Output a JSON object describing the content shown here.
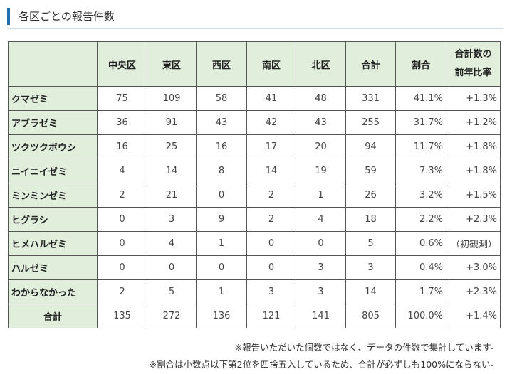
{
  "header": {
    "title": "各区ごとの報告件数"
  },
  "table": {
    "columns": [
      "中央区",
      "東区",
      "西区",
      "南区",
      "北区",
      "合計",
      "割合"
    ],
    "last_column": [
      "合計数の",
      "前年比率"
    ],
    "rows": [
      {
        "name": "クマゼミ",
        "values": [
          "75",
          "109",
          "58",
          "41",
          "48",
          "331"
        ],
        "ratio": "41.1%",
        "yoy": "+1.3%"
      },
      {
        "name": "アブラゼミ",
        "values": [
          "36",
          "91",
          "43",
          "42",
          "43",
          "255"
        ],
        "ratio": "31.7%",
        "yoy": "+1.2%"
      },
      {
        "name": "ツクツクボウシ",
        "values": [
          "16",
          "25",
          "16",
          "17",
          "20",
          "94"
        ],
        "ratio": "11.7%",
        "yoy": "+1.8%"
      },
      {
        "name": "ニイニイゼミ",
        "values": [
          "4",
          "14",
          "8",
          "14",
          "19",
          "59"
        ],
        "ratio": "7.3%",
        "yoy": "+1.8%"
      },
      {
        "name": "ミンミンゼミ",
        "values": [
          "2",
          "21",
          "0",
          "2",
          "1",
          "26"
        ],
        "ratio": "3.2%",
        "yoy": "+1.5%"
      },
      {
        "name": "ヒグラシ",
        "values": [
          "0",
          "3",
          "9",
          "2",
          "4",
          "18"
        ],
        "ratio": "2.2%",
        "yoy": "+2.3%"
      },
      {
        "name": "ヒメハルゼミ",
        "values": [
          "0",
          "4",
          "1",
          "0",
          "0",
          "5"
        ],
        "ratio": "0.6%",
        "yoy": "（初観測）"
      },
      {
        "name": "ハルゼミ",
        "values": [
          "0",
          "0",
          "0",
          "0",
          "3",
          "3"
        ],
        "ratio": "0.4%",
        "yoy": "+3.0%"
      },
      {
        "name": "わからなかった",
        "values": [
          "2",
          "5",
          "1",
          "3",
          "3",
          "14"
        ],
        "ratio": "1.7%",
        "yoy": "+2.3%"
      },
      {
        "name": "合計",
        "values": [
          "135",
          "272",
          "136",
          "121",
          "141",
          "805"
        ],
        "ratio": "100.0%",
        "yoy": "+1.4%"
      }
    ]
  },
  "notes": [
    "※報告いただいた個数ではなく、データの件数で集計しています。",
    "※割合は小数点以下第2位を四捨五入しているため、合計が必ずしも100%にならない。"
  ]
}
